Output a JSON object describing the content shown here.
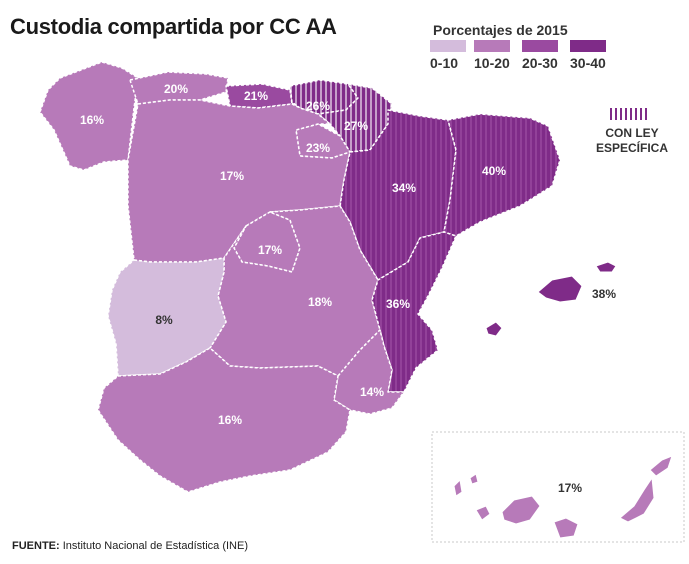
{
  "title": "Custodia compartida por CC AA",
  "legend": {
    "title": "Porcentajes de 2015",
    "items": [
      {
        "label": "0-10",
        "color": "#d4bcdc"
      },
      {
        "label": "10-20",
        "color": "#b77ab9"
      },
      {
        "label": "20-30",
        "color": "#9a4aa0"
      },
      {
        "label": "30-40",
        "color": "#7f2b88"
      }
    ],
    "ley_line1": "CON LEY",
    "ley_line2": "ESPECÍFICA"
  },
  "regions": {
    "galicia": "16%",
    "asturias": "20%",
    "cantabria": "21%",
    "pais_vasco": "26%",
    "navarra": "27%",
    "la_rioja": "23%",
    "castilla_leon": "17%",
    "aragon": "34%",
    "cataluna": "40%",
    "madrid": "17%",
    "extremadura": "8%",
    "castilla_la_mancha": "18%",
    "valencia": "36%",
    "baleares": "38%",
    "murcia": "14%",
    "andalucia": "16%",
    "canarias": "17%"
  },
  "footer": {
    "label": "FUENTE:",
    "text": " Instituto Nacional de Estadística (INE)"
  }
}
